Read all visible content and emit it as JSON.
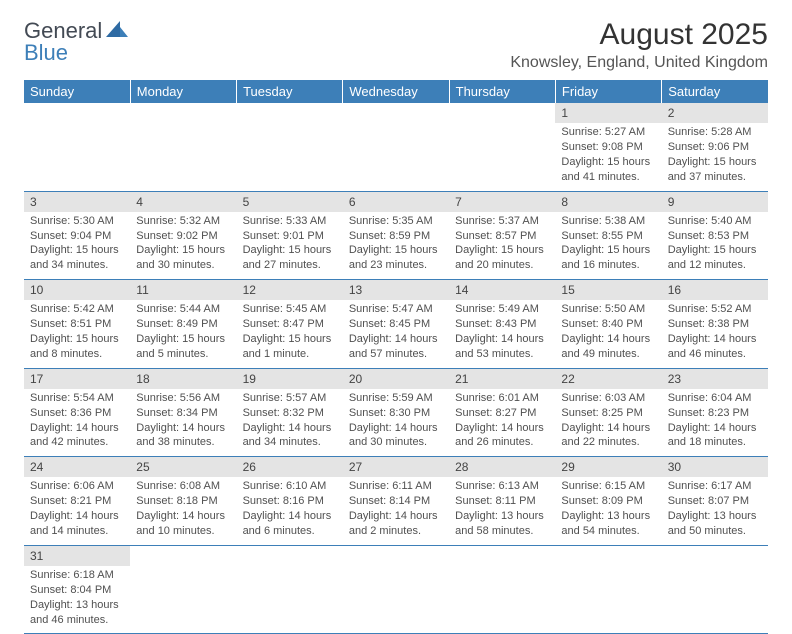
{
  "brand": {
    "part1": "General",
    "part2": "Blue"
  },
  "title": "August 2025",
  "location": "Knowsley, England, United Kingdom",
  "colors": {
    "header_bg": "#3d7fb8",
    "header_text": "#ffffff",
    "daynum_bg": "#e4e4e4",
    "body_text": "#505050",
    "rule": "#3d7fb8"
  },
  "typography": {
    "title_fontsize": 30,
    "location_fontsize": 16,
    "th_fontsize": 13,
    "cell_fontsize": 11
  },
  "weekdays": [
    "Sunday",
    "Monday",
    "Tuesday",
    "Wednesday",
    "Thursday",
    "Friday",
    "Saturday"
  ],
  "weeks": [
    [
      null,
      null,
      null,
      null,
      null,
      {
        "n": "1",
        "sunrise": "Sunrise: 5:27 AM",
        "sunset": "Sunset: 9:08 PM",
        "daylight": "Daylight: 15 hours and 41 minutes."
      },
      {
        "n": "2",
        "sunrise": "Sunrise: 5:28 AM",
        "sunset": "Sunset: 9:06 PM",
        "daylight": "Daylight: 15 hours and 37 minutes."
      }
    ],
    [
      {
        "n": "3",
        "sunrise": "Sunrise: 5:30 AM",
        "sunset": "Sunset: 9:04 PM",
        "daylight": "Daylight: 15 hours and 34 minutes."
      },
      {
        "n": "4",
        "sunrise": "Sunrise: 5:32 AM",
        "sunset": "Sunset: 9:02 PM",
        "daylight": "Daylight: 15 hours and 30 minutes."
      },
      {
        "n": "5",
        "sunrise": "Sunrise: 5:33 AM",
        "sunset": "Sunset: 9:01 PM",
        "daylight": "Daylight: 15 hours and 27 minutes."
      },
      {
        "n": "6",
        "sunrise": "Sunrise: 5:35 AM",
        "sunset": "Sunset: 8:59 PM",
        "daylight": "Daylight: 15 hours and 23 minutes."
      },
      {
        "n": "7",
        "sunrise": "Sunrise: 5:37 AM",
        "sunset": "Sunset: 8:57 PM",
        "daylight": "Daylight: 15 hours and 20 minutes."
      },
      {
        "n": "8",
        "sunrise": "Sunrise: 5:38 AM",
        "sunset": "Sunset: 8:55 PM",
        "daylight": "Daylight: 15 hours and 16 minutes."
      },
      {
        "n": "9",
        "sunrise": "Sunrise: 5:40 AM",
        "sunset": "Sunset: 8:53 PM",
        "daylight": "Daylight: 15 hours and 12 minutes."
      }
    ],
    [
      {
        "n": "10",
        "sunrise": "Sunrise: 5:42 AM",
        "sunset": "Sunset: 8:51 PM",
        "daylight": "Daylight: 15 hours and 8 minutes."
      },
      {
        "n": "11",
        "sunrise": "Sunrise: 5:44 AM",
        "sunset": "Sunset: 8:49 PM",
        "daylight": "Daylight: 15 hours and 5 minutes."
      },
      {
        "n": "12",
        "sunrise": "Sunrise: 5:45 AM",
        "sunset": "Sunset: 8:47 PM",
        "daylight": "Daylight: 15 hours and 1 minute."
      },
      {
        "n": "13",
        "sunrise": "Sunrise: 5:47 AM",
        "sunset": "Sunset: 8:45 PM",
        "daylight": "Daylight: 14 hours and 57 minutes."
      },
      {
        "n": "14",
        "sunrise": "Sunrise: 5:49 AM",
        "sunset": "Sunset: 8:43 PM",
        "daylight": "Daylight: 14 hours and 53 minutes."
      },
      {
        "n": "15",
        "sunrise": "Sunrise: 5:50 AM",
        "sunset": "Sunset: 8:40 PM",
        "daylight": "Daylight: 14 hours and 49 minutes."
      },
      {
        "n": "16",
        "sunrise": "Sunrise: 5:52 AM",
        "sunset": "Sunset: 8:38 PM",
        "daylight": "Daylight: 14 hours and 46 minutes."
      }
    ],
    [
      {
        "n": "17",
        "sunrise": "Sunrise: 5:54 AM",
        "sunset": "Sunset: 8:36 PM",
        "daylight": "Daylight: 14 hours and 42 minutes."
      },
      {
        "n": "18",
        "sunrise": "Sunrise: 5:56 AM",
        "sunset": "Sunset: 8:34 PM",
        "daylight": "Daylight: 14 hours and 38 minutes."
      },
      {
        "n": "19",
        "sunrise": "Sunrise: 5:57 AM",
        "sunset": "Sunset: 8:32 PM",
        "daylight": "Daylight: 14 hours and 34 minutes."
      },
      {
        "n": "20",
        "sunrise": "Sunrise: 5:59 AM",
        "sunset": "Sunset: 8:30 PM",
        "daylight": "Daylight: 14 hours and 30 minutes."
      },
      {
        "n": "21",
        "sunrise": "Sunrise: 6:01 AM",
        "sunset": "Sunset: 8:27 PM",
        "daylight": "Daylight: 14 hours and 26 minutes."
      },
      {
        "n": "22",
        "sunrise": "Sunrise: 6:03 AM",
        "sunset": "Sunset: 8:25 PM",
        "daylight": "Daylight: 14 hours and 22 minutes."
      },
      {
        "n": "23",
        "sunrise": "Sunrise: 6:04 AM",
        "sunset": "Sunset: 8:23 PM",
        "daylight": "Daylight: 14 hours and 18 minutes."
      }
    ],
    [
      {
        "n": "24",
        "sunrise": "Sunrise: 6:06 AM",
        "sunset": "Sunset: 8:21 PM",
        "daylight": "Daylight: 14 hours and 14 minutes."
      },
      {
        "n": "25",
        "sunrise": "Sunrise: 6:08 AM",
        "sunset": "Sunset: 8:18 PM",
        "daylight": "Daylight: 14 hours and 10 minutes."
      },
      {
        "n": "26",
        "sunrise": "Sunrise: 6:10 AM",
        "sunset": "Sunset: 8:16 PM",
        "daylight": "Daylight: 14 hours and 6 minutes."
      },
      {
        "n": "27",
        "sunrise": "Sunrise: 6:11 AM",
        "sunset": "Sunset: 8:14 PM",
        "daylight": "Daylight: 14 hours and 2 minutes."
      },
      {
        "n": "28",
        "sunrise": "Sunrise: 6:13 AM",
        "sunset": "Sunset: 8:11 PM",
        "daylight": "Daylight: 13 hours and 58 minutes."
      },
      {
        "n": "29",
        "sunrise": "Sunrise: 6:15 AM",
        "sunset": "Sunset: 8:09 PM",
        "daylight": "Daylight: 13 hours and 54 minutes."
      },
      {
        "n": "30",
        "sunrise": "Sunrise: 6:17 AM",
        "sunset": "Sunset: 8:07 PM",
        "daylight": "Daylight: 13 hours and 50 minutes."
      }
    ],
    [
      {
        "n": "31",
        "sunrise": "Sunrise: 6:18 AM",
        "sunset": "Sunset: 8:04 PM",
        "daylight": "Daylight: 13 hours and 46 minutes."
      },
      null,
      null,
      null,
      null,
      null,
      null
    ]
  ]
}
